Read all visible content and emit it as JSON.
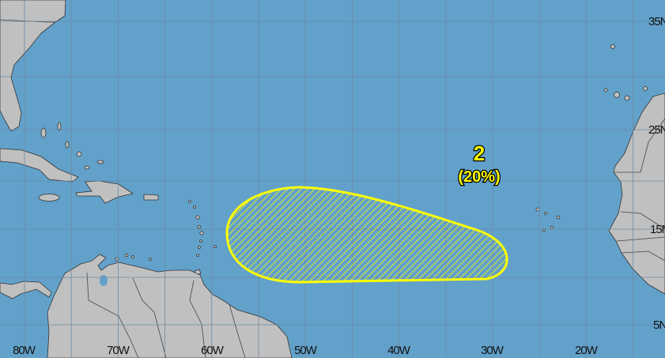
{
  "map": {
    "colors": {
      "ocean": "#62a1ca",
      "land": "#c0c0c0",
      "outlook_area": "#ffff00"
    },
    "longitude_labels": [
      "80W",
      "70W",
      "60W",
      "50W",
      "40W",
      "30W",
      "20W"
    ],
    "latitude_labels": [
      "35N",
      "25N",
      "15N",
      "5N"
    ],
    "outlook": {
      "number": "2",
      "probability": "(20%)",
      "fill": "yellow-hatched"
    }
  }
}
